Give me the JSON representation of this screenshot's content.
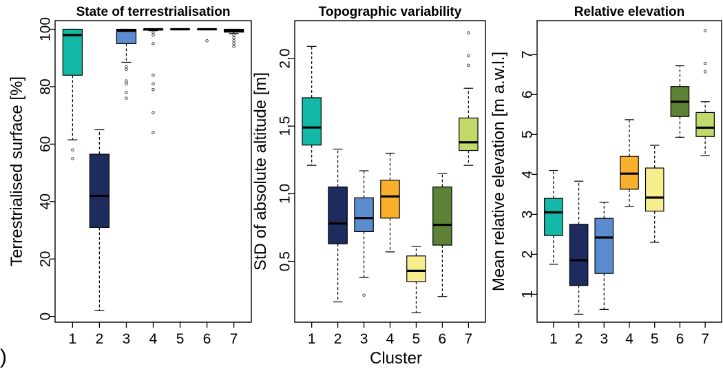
{
  "figure": {
    "xlabel": "Cluster",
    "panel_label_fragment": ")"
  },
  "chart_data": [
    {
      "type": "box",
      "title": "State of terrestrialisation",
      "ylabel": "Terrestrialised surface [%]",
      "xlabel": "",
      "ylim": [
        -2,
        103
      ],
      "yticks": [
        0,
        20,
        40,
        60,
        80,
        100
      ],
      "categories": [
        "1",
        "2",
        "3",
        "4",
        "5",
        "6",
        "7"
      ],
      "colors": [
        "#13b8a6",
        "#1e2b5e",
        "#5b8ccf",
        "#f9b02c",
        "#f7ef8f",
        "#5e8235",
        "#c2da6a"
      ],
      "boxes": [
        {
          "min": 61.5,
          "q1": 84,
          "median": 98,
          "q3": 100,
          "max": 100,
          "outliers": [
            58,
            55
          ]
        },
        {
          "min": 2,
          "q1": 31,
          "median": 42,
          "q3": 56.5,
          "max": 65,
          "outliers": []
        },
        {
          "min": 88.5,
          "q1": 95,
          "median": 99.5,
          "q3": 100,
          "max": 100,
          "outliers": [
            87,
            86,
            82,
            81,
            78,
            76
          ]
        },
        {
          "min": 99.5,
          "q1": 99.7,
          "median": 100,
          "q3": 100,
          "max": 100,
          "outliers": [
            99,
            98,
            95,
            84,
            81,
            79,
            71,
            64
          ]
        },
        {
          "min": 100,
          "q1": 100,
          "median": 100,
          "q3": 100,
          "max": 100,
          "outliers": []
        },
        {
          "min": 100,
          "q1": 100,
          "median": 100,
          "q3": 100,
          "max": 100,
          "outliers": [
            96
          ]
        },
        {
          "min": 98.5,
          "q1": 99,
          "median": 99.5,
          "q3": 100,
          "max": 100,
          "outliers": [
            98,
            97,
            96,
            95,
            94
          ]
        }
      ]
    },
    {
      "type": "box",
      "title": "Topographic variability",
      "ylabel": "StD of absolute altitude [m]",
      "xlabel": "",
      "ylim": [
        0.05,
        2.28
      ],
      "yticks": [
        0.5,
        1.0,
        1.5,
        2.0
      ],
      "categories": [
        "1",
        "2",
        "3",
        "4",
        "5",
        "6",
        "7"
      ],
      "colors": [
        "#13b8a6",
        "#1e2b5e",
        "#5b8ccf",
        "#f9b02c",
        "#f7ef8f",
        "#5e8235",
        "#c2da6a"
      ],
      "boxes": [
        {
          "min": 1.21,
          "q1": 1.36,
          "median": 1.49,
          "q3": 1.71,
          "max": 2.09,
          "outliers": []
        },
        {
          "min": 0.2,
          "q1": 0.63,
          "median": 0.78,
          "q3": 1.05,
          "max": 1.33,
          "outliers": []
        },
        {
          "min": 0.38,
          "q1": 0.72,
          "median": 0.82,
          "q3": 0.97,
          "max": 1.17,
          "outliers": [
            0.25
          ]
        },
        {
          "min": 0.57,
          "q1": 0.82,
          "median": 0.98,
          "q3": 1.1,
          "max": 1.3,
          "outliers": []
        },
        {
          "min": 0.12,
          "q1": 0.35,
          "median": 0.43,
          "q3": 0.54,
          "max": 0.61,
          "outliers": []
        },
        {
          "min": 0.24,
          "q1": 0.62,
          "median": 0.77,
          "q3": 1.05,
          "max": 1.15,
          "outliers": []
        },
        {
          "min": 1.21,
          "q1": 1.32,
          "median": 1.38,
          "q3": 1.56,
          "max": 1.78,
          "outliers": [
            1.95,
            2.02,
            2.19
          ]
        }
      ]
    },
    {
      "type": "box",
      "title": "Relative elevation",
      "ylabel": "Mean relative elevation [m a.w.l.]",
      "xlabel": "",
      "ylim": [
        0.3,
        7.85
      ],
      "yticks": [
        1,
        2,
        3,
        4,
        5,
        6,
        7
      ],
      "categories": [
        "1",
        "2",
        "3",
        "4",
        "5",
        "6",
        "7"
      ],
      "colors": [
        "#13b8a6",
        "#1e2b5e",
        "#5b8ccf",
        "#f9b02c",
        "#f7ef8f",
        "#5e8235",
        "#c2da6a"
      ],
      "boxes": [
        {
          "min": 1.75,
          "q1": 2.47,
          "median": 3.05,
          "q3": 3.4,
          "max": 4.1,
          "outliers": []
        },
        {
          "min": 0.5,
          "q1": 1.22,
          "median": 1.85,
          "q3": 2.75,
          "max": 3.83,
          "outliers": []
        },
        {
          "min": 0.62,
          "q1": 1.52,
          "median": 2.42,
          "q3": 2.9,
          "max": 3.3,
          "outliers": []
        },
        {
          "min": 3.2,
          "q1": 3.63,
          "median": 4.02,
          "q3": 4.45,
          "max": 5.37,
          "outliers": []
        },
        {
          "min": 2.3,
          "q1": 3.08,
          "median": 3.42,
          "q3": 4.16,
          "max": 4.73,
          "outliers": []
        },
        {
          "min": 4.93,
          "q1": 5.45,
          "median": 5.82,
          "q3": 6.2,
          "max": 6.72,
          "outliers": []
        },
        {
          "min": 4.47,
          "q1": 4.95,
          "median": 5.17,
          "q3": 5.55,
          "max": 5.82,
          "outliers": [
            6.57,
            6.78,
            7.6
          ]
        }
      ]
    }
  ]
}
